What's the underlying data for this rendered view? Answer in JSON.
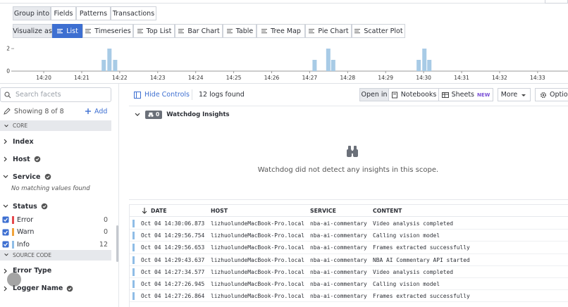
{
  "toolbar": {
    "group_label": "Group into",
    "group_tabs": [
      "Fields",
      "Patterns",
      "Transactions"
    ],
    "visualize_label": "Visualize as",
    "visualize_options": [
      "List",
      "Timeseries",
      "Top List",
      "Bar Chart",
      "Table",
      "Tree Map",
      "Pie Chart",
      "Scatter Plot"
    ],
    "active_option": 0
  },
  "chart_data": {
    "type": "bar",
    "x": [
      21.58,
      21.73,
      21.88,
      27.13,
      27.49,
      27.62,
      29.87,
      30.02,
      30.15
    ],
    "values": [
      1,
      2,
      1,
      1,
      2,
      1,
      1,
      2,
      1
    ],
    "color": "#a8cbe6",
    "xlim": [
      19.22,
      33.8
    ],
    "xticks": [
      {
        "value": 20,
        "label": "14:20"
      },
      {
        "value": 21,
        "label": "14:21"
      },
      {
        "value": 22,
        "label": "14:22"
      },
      {
        "value": 23,
        "label": "14:23"
      },
      {
        "value": 24,
        "label": "14:24"
      },
      {
        "value": 25,
        "label": "14:25"
      },
      {
        "value": 26,
        "label": "14:26"
      },
      {
        "value": 27,
        "label": "14:27"
      },
      {
        "value": 28,
        "label": "14:28"
      },
      {
        "value": 29,
        "label": "14:29"
      },
      {
        "value": 30,
        "label": "14:30"
      },
      {
        "value": 31,
        "label": "14:31"
      },
      {
        "value": 32,
        "label": "14:32"
      },
      {
        "value": 33,
        "label": "14:33"
      }
    ],
    "ylim": [
      0,
      2
    ],
    "yticks": [
      0,
      2
    ]
  },
  "sidebar": {
    "search_placeholder": "Search facets",
    "showing": "Showing 8 of 8",
    "add": "Add",
    "sections": [
      {
        "title": "CORE",
        "facets": [
          {
            "name": "Index",
            "badge": false
          },
          {
            "name": "Host",
            "badge": true
          },
          {
            "name": "Service",
            "badge": true,
            "empty": "No matching values found"
          },
          {
            "name": "Status",
            "badge": true,
            "values": [
              {
                "label": "Error",
                "count": 0,
                "color": "#e5484d"
              },
              {
                "label": "Warn",
                "count": 0,
                "color": "#f0a33a"
              },
              {
                "label": "Info",
                "count": 12,
                "color": "#8fbde6"
              }
            ]
          }
        ]
      },
      {
        "title": "SOURCE CODE",
        "facets": [
          {
            "name": "Error Type",
            "badge": false
          },
          {
            "name": "Logger Name",
            "badge": true
          }
        ]
      }
    ]
  },
  "main": {
    "hide_controls": "Hide Controls",
    "logs_found": "12 logs found",
    "open_in": "Open in",
    "notebooks": "Notebooks",
    "sheets": "Sheets",
    "new_badge": "NEW",
    "more": "More",
    "options": "Options",
    "watchdog_count": "0",
    "watchdog_title": "Watchdog Insights",
    "watchdog_message": "Watchdog did not detect any insights in this scope."
  },
  "table": {
    "columns": [
      "DATE",
      "HOST",
      "SERVICE",
      "CONTENT"
    ],
    "rows": [
      [
        "Oct 04 14:30:06.873",
        "lizhuolundeMacBook-Pro.local",
        "nba-ai-commentary",
        "Video analysis completed"
      ],
      [
        "Oct 04 14:29:56.754",
        "lizhuolundeMacBook-Pro.local",
        "nba-ai-commentary",
        "Calling vision model"
      ],
      [
        "Oct 04 14:29:56.653",
        "lizhuolundeMacBook-Pro.local",
        "nba-ai-commentary",
        "Frames extracted successfully"
      ],
      [
        "Oct 04 14:29:43.637",
        "lizhuolundeMacBook-Pro.local",
        "nba-ai-commentary",
        "NBA AI Commentary API started"
      ],
      [
        "Oct 04 14:27:34.577",
        "lizhuolundeMacBook-Pro.local",
        "nba-ai-commentary",
        "Video analysis completed"
      ],
      [
        "Oct 04 14:27:26.945",
        "lizhuolundeMacBook-Pro.local",
        "nba-ai-commentary",
        "Calling vision model"
      ],
      [
        "Oct 04 14:27:26.864",
        "lizhuolundeMacBook-Pro.local",
        "nba-ai-commentary",
        "Frames extracted successfully"
      ]
    ]
  }
}
